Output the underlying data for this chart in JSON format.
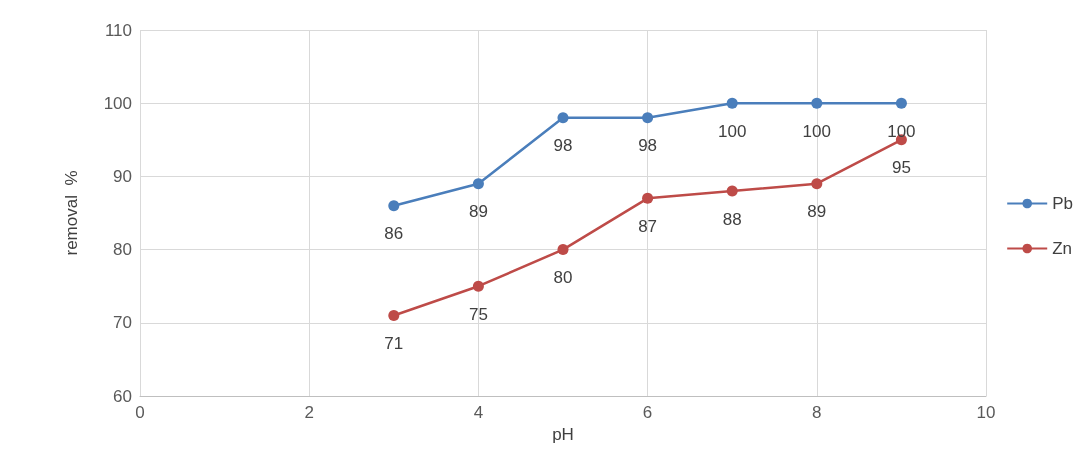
{
  "chart_data": {
    "type": "line",
    "xlabel": "pH",
    "ylabel": "removal  %",
    "xlim": [
      0,
      10
    ],
    "xticks": [
      0,
      2,
      4,
      6,
      8,
      10
    ],
    "ylim": [
      60,
      110
    ],
    "yticks": [
      60,
      70,
      80,
      90,
      100,
      110
    ],
    "x": [
      3,
      4,
      5,
      6,
      7,
      8,
      9
    ],
    "series": [
      {
        "name": "Pb",
        "color": "#4a7ebb",
        "values": [
          86,
          89,
          98,
          98,
          100,
          100,
          100
        ]
      },
      {
        "name": "Zn",
        "color": "#be4b48",
        "values": [
          71,
          75,
          80,
          87,
          88,
          89,
          95
        ]
      }
    ],
    "grid": true,
    "legend": "right",
    "marker": "circle",
    "line_style": "solid",
    "data_labels": true
  }
}
